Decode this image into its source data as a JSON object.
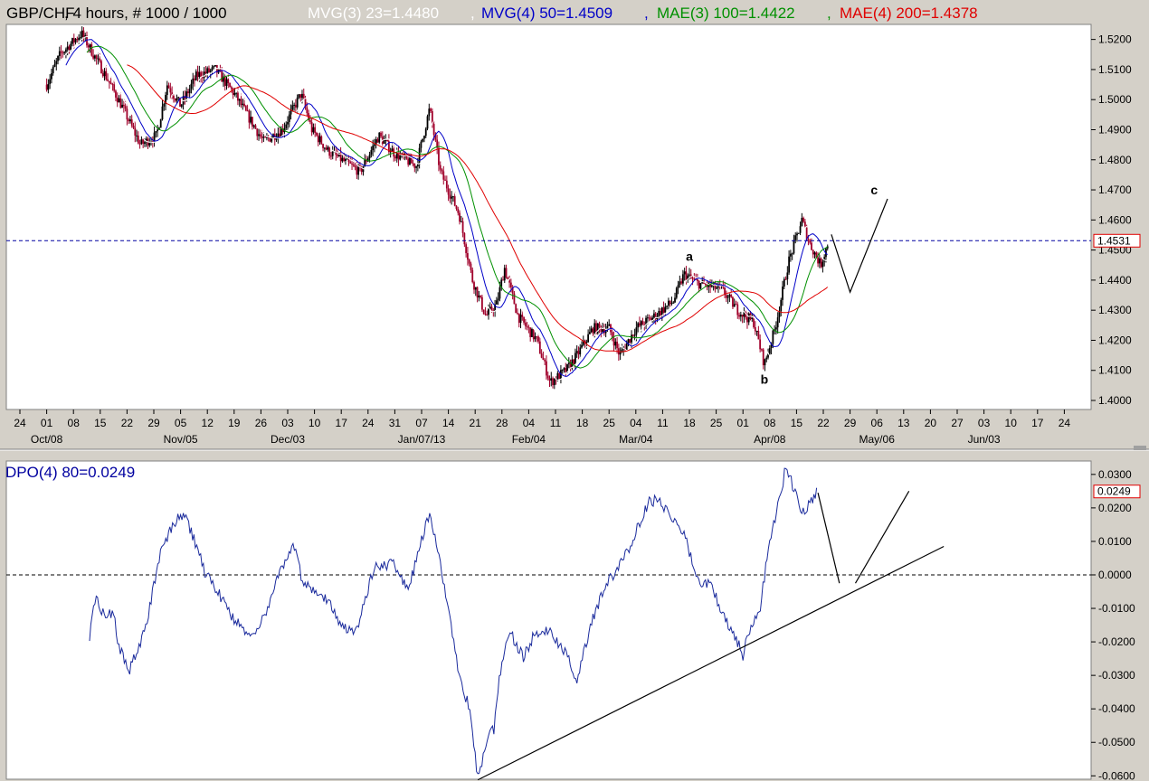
{
  "header": {
    "symbol": "GBP/CHF",
    "interval": ", 4 hours, # 1000 / 1000",
    "ind1": "MVG(3) 23=1.4480",
    "ind2": "MVG(4) 50=1.4509",
    "ind3": "MAE(3) 100=1.4422",
    "ind4": "MAE(4) 200=1.4378",
    "sep": ", "
  },
  "lower": {
    "title": "DPO(4) 80=0.0249"
  },
  "colors": {
    "background": "#d4d0c8",
    "plot_bg": "#ffffff",
    "ind1": "#ffffff",
    "ind2": "#0000c8",
    "ind3": "#009000",
    "ind4": "#e00000",
    "dpo": "#1a2a9c",
    "candle_up": "#000000",
    "candle_down": "#a0002a",
    "price_tag": "#e00000"
  },
  "chart_data": [
    {
      "type": "candlestick",
      "ylim": [
        1.397,
        1.525
      ],
      "y_ticks": [
        "1.5200",
        "1.5100",
        "1.5000",
        "1.4900",
        "1.4800",
        "1.4700",
        "1.4600",
        "1.4500",
        "1.4400",
        "1.4300",
        "1.4200",
        "1.4100",
        "1.4000"
      ],
      "y_tick_values": [
        1.52,
        1.51,
        1.5,
        1.49,
        1.48,
        1.47,
        1.46,
        1.45,
        1.44,
        1.43,
        1.42,
        1.41,
        1.4
      ],
      "x_day_labels": [
        "24",
        "01",
        "08",
        "15",
        "22",
        "29",
        "05",
        "12",
        "19",
        "26",
        "03",
        "10",
        "17",
        "24",
        "31",
        "07",
        "14",
        "21",
        "28",
        "04",
        "11",
        "18",
        "25",
        "04",
        "11",
        "18",
        "25",
        "01",
        "08",
        "15",
        "22",
        "29",
        "06",
        "13",
        "20",
        "27",
        "03",
        "10",
        "17",
        "24"
      ],
      "x_month_labels": [
        {
          "label": "Oct/08",
          "at_index": 1
        },
        {
          "label": "Nov/05",
          "at_index": 6
        },
        {
          "label": "Dec/03",
          "at_index": 10
        },
        {
          "label": "Jan/07/13",
          "at_index": 15
        },
        {
          "label": "Feb/04",
          "at_index": 19
        },
        {
          "label": "Mar/04",
          "at_index": 23
        },
        {
          "label": "Apr/08",
          "at_index": 28
        },
        {
          "label": "May/06",
          "at_index": 32
        },
        {
          "label": "Jun/03",
          "at_index": 36
        }
      ],
      "last_price": 1.4531,
      "last_price_label": "1.4531",
      "price_anchors": [
        [
          1,
          1.505
        ],
        [
          1.5,
          1.515
        ],
        [
          2.3,
          1.522
        ],
        [
          3.2,
          1.508
        ],
        [
          3.8,
          1.498
        ],
        [
          4.5,
          1.485
        ],
        [
          5.1,
          1.488
        ],
        [
          5.5,
          1.505
        ],
        [
          6,
          1.498
        ],
        [
          6.6,
          1.508
        ],
        [
          7.3,
          1.51
        ],
        [
          8,
          1.502
        ],
        [
          9.1,
          1.486
        ],
        [
          9.8,
          1.49
        ],
        [
          10.5,
          1.502
        ],
        [
          10.9,
          1.49
        ],
        [
          11.5,
          1.483
        ],
        [
          12.7,
          1.476
        ],
        [
          13.4,
          1.488
        ],
        [
          14,
          1.482
        ],
        [
          14.8,
          1.478
        ],
        [
          15.3,
          1.497
        ],
        [
          15.7,
          1.476
        ],
        [
          16.4,
          1.462
        ],
        [
          16.9,
          1.44
        ],
        [
          17.4,
          1.428
        ],
        [
          17.8,
          1.432
        ],
        [
          18.1,
          1.444
        ],
        [
          18.6,
          1.428
        ],
        [
          19.3,
          1.42
        ],
        [
          19.8,
          1.406
        ],
        [
          20.4,
          1.41
        ],
        [
          20.8,
          1.415
        ],
        [
          21.4,
          1.424
        ],
        [
          22,
          1.424
        ],
        [
          22.4,
          1.415
        ],
        [
          23,
          1.424
        ],
        [
          23.7,
          1.428
        ],
        [
          24.4,
          1.433
        ],
        [
          24.8,
          1.442
        ],
        [
          25.3,
          1.439
        ],
        [
          26.2,
          1.437
        ],
        [
          26.8,
          1.43
        ],
        [
          27.4,
          1.426
        ],
        [
          27.8,
          1.412
        ],
        [
          28.2,
          1.424
        ],
        [
          28.7,
          1.446
        ],
        [
          29.2,
          1.46
        ],
        [
          29.5,
          1.452
        ],
        [
          29.9,
          1.445
        ],
        [
          30.2,
          1.453
        ]
      ],
      "series": [
        {
          "name": "MVG(3) 23",
          "values": []
        },
        {
          "name": "MVG(4) 50",
          "values": []
        },
        {
          "name": "MAE(3) 100",
          "values": []
        },
        {
          "name": "MAE(4) 200",
          "values": []
        }
      ],
      "annotations": [
        {
          "label": "a",
          "at": [
            25,
            1.4465
          ]
        },
        {
          "label": "b",
          "at": [
            27.8,
            1.4055
          ]
        },
        {
          "label": "c",
          "at": [
            31.9,
            1.4685
          ]
        }
      ],
      "projection_lines": [
        [
          [
            30.3,
            1.4552
          ],
          [
            31,
            1.436
          ],
          [
            32.4,
            1.467
          ]
        ]
      ]
    },
    {
      "type": "line",
      "ylim": [
        -0.061,
        0.034
      ],
      "y_ticks": [
        "0.0300",
        "0.0200",
        "0.0100",
        "0.0000",
        "-0.0100",
        "-0.0200",
        "-0.0300",
        "-0.0400",
        "-0.0500",
        "-0.0600"
      ],
      "y_tick_values": [
        0.03,
        0.02,
        0.01,
        0.0,
        -0.01,
        -0.02,
        -0.03,
        -0.04,
        -0.05,
        -0.06
      ],
      "zero_line": 0,
      "last_value": 0.0249,
      "last_value_label": "0.0249",
      "dpo_anchors": [
        [
          2.6,
          -0.018
        ],
        [
          2.8,
          -0.007
        ],
        [
          3.1,
          -0.011
        ],
        [
          3.5,
          -0.012
        ],
        [
          3.7,
          -0.022
        ],
        [
          4.1,
          -0.028
        ],
        [
          4.5,
          -0.021
        ],
        [
          4.8,
          -0.012
        ],
        [
          5.2,
          0.005
        ],
        [
          5.7,
          0.015
        ],
        [
          6.1,
          0.018
        ],
        [
          6.4,
          0.013
        ],
        [
          6.9,
          0.001
        ],
        [
          7.3,
          -0.004
        ],
        [
          7.9,
          -0.012
        ],
        [
          8.5,
          -0.018
        ],
        [
          8.9,
          -0.016
        ],
        [
          9.2,
          -0.011
        ],
        [
          9.6,
          -0.001
        ],
        [
          10.2,
          0.009
        ],
        [
          10.6,
          -0.003
        ],
        [
          11,
          -0.004
        ],
        [
          11.5,
          -0.008
        ],
        [
          12.1,
          -0.016
        ],
        [
          12.6,
          -0.016
        ],
        [
          13.2,
          0.002
        ],
        [
          13.6,
          0.003
        ],
        [
          14,
          0.003
        ],
        [
          14.5,
          -0.005
        ],
        [
          14.9,
          0.008
        ],
        [
          15.3,
          0.018
        ],
        [
          15.5,
          0.012
        ],
        [
          16,
          -0.01
        ],
        [
          16.4,
          -0.03
        ],
        [
          16.8,
          -0.04
        ],
        [
          17.1,
          -0.061
        ],
        [
          17.4,
          -0.05
        ],
        [
          17.7,
          -0.046
        ],
        [
          17.9,
          -0.03
        ],
        [
          18.3,
          -0.017
        ],
        [
          18.8,
          -0.025
        ],
        [
          19.2,
          -0.018
        ],
        [
          19.5,
          -0.018
        ],
        [
          19.8,
          -0.016
        ],
        [
          20.2,
          -0.022
        ],
        [
          20.5,
          -0.025
        ],
        [
          20.8,
          -0.032
        ],
        [
          21.3,
          -0.015
        ],
        [
          21.9,
          -0.003
        ],
        [
          22.5,
          0.004
        ],
        [
          22.9,
          0.011
        ],
        [
          23.5,
          0.022
        ],
        [
          23.9,
          0.022
        ],
        [
          24.4,
          0.017
        ],
        [
          24.8,
          0.012
        ],
        [
          25.4,
          -0.004
        ],
        [
          25.8,
          -0.002
        ],
        [
          26.2,
          -0.012
        ],
        [
          26.6,
          -0.016
        ],
        [
          27,
          -0.024
        ],
        [
          27.2,
          -0.017
        ],
        [
          27.6,
          -0.012
        ],
        [
          27.9,
          0.005
        ],
        [
          28.2,
          0.017
        ],
        [
          28.6,
          0.032
        ],
        [
          28.9,
          0.026
        ],
        [
          29.2,
          0.018
        ],
        [
          29.5,
          0.022
        ],
        [
          29.8,
          0.0249
        ]
      ],
      "trendline": [
        [
          17.1,
          -0.0612
        ],
        [
          34.5,
          0.0085
        ]
      ],
      "projection_lines": [
        [
          [
            29.8,
            0.0245
          ],
          [
            30.6,
            -0.0025
          ]
        ],
        [
          [
            31.2,
            -0.0025
          ],
          [
            33.2,
            0.025
          ]
        ]
      ]
    }
  ]
}
